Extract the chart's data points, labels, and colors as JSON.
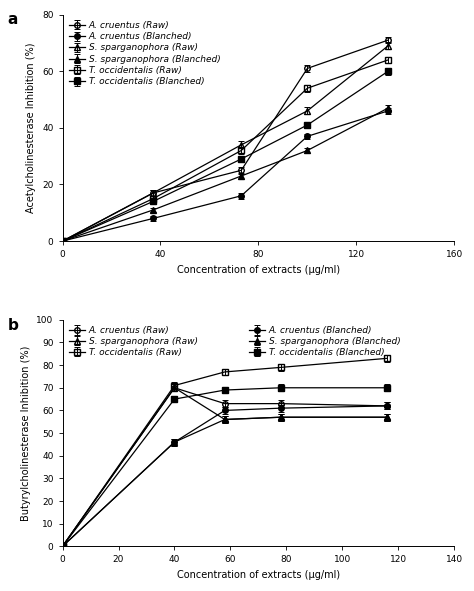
{
  "panel_a": {
    "xlabel": "Concentration of extracts (μg/ml)",
    "ylabel": "Acetylcholinesterase Inhibition (%)",
    "xlim": [
      0,
      160
    ],
    "ylim": [
      0,
      80
    ],
    "xticks": [
      0,
      40,
      80,
      120,
      160
    ],
    "yticks": [
      0,
      20,
      40,
      60,
      80
    ],
    "series": [
      {
        "label": "A. cruentus (Raw)",
        "x": [
          0,
          37,
          73,
          100,
          133
        ],
        "y": [
          0,
          17,
          25,
          61,
          71
        ],
        "yerr": [
          0,
          1.0,
          1.2,
          1.2,
          1.2
        ],
        "marker": "o",
        "fillstyle": "none",
        "color": "black"
      },
      {
        "label": "A. cruentus (Blanched)",
        "x": [
          0,
          37,
          73,
          100,
          133
        ],
        "y": [
          0,
          8,
          16,
          37,
          46
        ],
        "yerr": [
          0,
          0.8,
          1.0,
          1.0,
          1.0
        ],
        "marker": "o",
        "fillstyle": "full",
        "color": "black"
      },
      {
        "label": "S. sparganophora (Raw)",
        "x": [
          0,
          37,
          73,
          100,
          133
        ],
        "y": [
          0,
          17,
          34,
          46,
          69
        ],
        "yerr": [
          0,
          1.0,
          1.2,
          1.2,
          1.2
        ],
        "marker": "^",
        "fillstyle": "none",
        "color": "black"
      },
      {
        "label": "S. sparganophora (Blanched)",
        "x": [
          0,
          37,
          73,
          100,
          133
        ],
        "y": [
          0,
          11,
          23,
          32,
          47
        ],
        "yerr": [
          0,
          0.8,
          1.0,
          1.0,
          1.0
        ],
        "marker": "^",
        "fillstyle": "full",
        "color": "black"
      },
      {
        "label": "T. occidentalis (Raw)",
        "x": [
          0,
          37,
          73,
          100,
          133
        ],
        "y": [
          0,
          15,
          32,
          54,
          64
        ],
        "yerr": [
          0,
          1.0,
          1.2,
          1.2,
          1.2
        ],
        "marker": "s",
        "fillstyle": "none",
        "color": "black"
      },
      {
        "label": "T. occidentalis (Blanched)",
        "x": [
          0,
          37,
          73,
          100,
          133
        ],
        "y": [
          0,
          14,
          29,
          41,
          60
        ],
        "yerr": [
          0,
          1.0,
          1.2,
          1.2,
          1.2
        ],
        "marker": "s",
        "fillstyle": "full",
        "color": "black"
      }
    ]
  },
  "panel_b": {
    "xlabel": "Concentration of extracts (μg/ml)",
    "ylabel": "Butyrylcholinesterase Inhibition (%)",
    "xlim": [
      0,
      140
    ],
    "ylim": [
      0,
      100
    ],
    "xticks": [
      0,
      20,
      40,
      60,
      80,
      100,
      120,
      140
    ],
    "yticks": [
      0,
      10,
      20,
      30,
      40,
      50,
      60,
      70,
      80,
      90,
      100
    ],
    "series": [
      {
        "label": "A. cruentus (Raw)",
        "x": [
          0,
          40,
          58,
          78,
          116
        ],
        "y": [
          0,
          70,
          63,
          63,
          62
        ],
        "yerr": [
          0,
          1.5,
          1.5,
          1.5,
          1.5
        ],
        "marker": "o",
        "fillstyle": "none",
        "color": "black"
      },
      {
        "label": "A. cruentus (Blanched)",
        "x": [
          0,
          40,
          58,
          78,
          116
        ],
        "y": [
          0,
          46,
          60,
          61,
          62
        ],
        "yerr": [
          0,
          1.5,
          1.5,
          1.5,
          1.5
        ],
        "marker": "o",
        "fillstyle": "full",
        "color": "black"
      },
      {
        "label": "S. sparganophora (Raw)",
        "x": [
          0,
          40,
          58,
          78,
          116
        ],
        "y": [
          0,
          70,
          56,
          57,
          57
        ],
        "yerr": [
          0,
          1.5,
          1.5,
          1.5,
          1.5
        ],
        "marker": "^",
        "fillstyle": "none",
        "color": "black"
      },
      {
        "label": "S. sparganophora (Blanched)",
        "x": [
          0,
          40,
          58,
          78,
          116
        ],
        "y": [
          0,
          46,
          56,
          57,
          57
        ],
        "yerr": [
          0,
          1.5,
          1.5,
          1.5,
          1.5
        ],
        "marker": "^",
        "fillstyle": "full",
        "color": "black"
      },
      {
        "label": "T. occidentalis (Raw)",
        "x": [
          0,
          40,
          58,
          78,
          116
        ],
        "y": [
          0,
          71,
          77,
          79,
          83
        ],
        "yerr": [
          0,
          1.5,
          1.5,
          1.5,
          1.5
        ],
        "marker": "s",
        "fillstyle": "none",
        "color": "black"
      },
      {
        "label": "T. occidentalis (Blanched)",
        "x": [
          0,
          40,
          58,
          78,
          116
        ],
        "y": [
          0,
          65,
          69,
          70,
          70
        ],
        "yerr": [
          0,
          1.5,
          1.5,
          1.5,
          1.5
        ],
        "marker": "s",
        "fillstyle": "full",
        "color": "black"
      }
    ],
    "legend_left": [
      "A. cruentus (Raw)",
      "S. sparganophora (Raw)",
      "T. occidentalis (Raw)"
    ],
    "legend_right": [
      "A. cruentus (Blanched)",
      "S. sparganophora (Blanched)",
      "T. occidentalis (Blanched)"
    ]
  },
  "legend_fontsize": 6.5,
  "axis_label_fontsize": 7,
  "tick_fontsize": 6.5,
  "marker_size": 4,
  "line_width": 0.9,
  "cap_size": 2,
  "elinewidth": 0.7,
  "background_color": "#ffffff"
}
